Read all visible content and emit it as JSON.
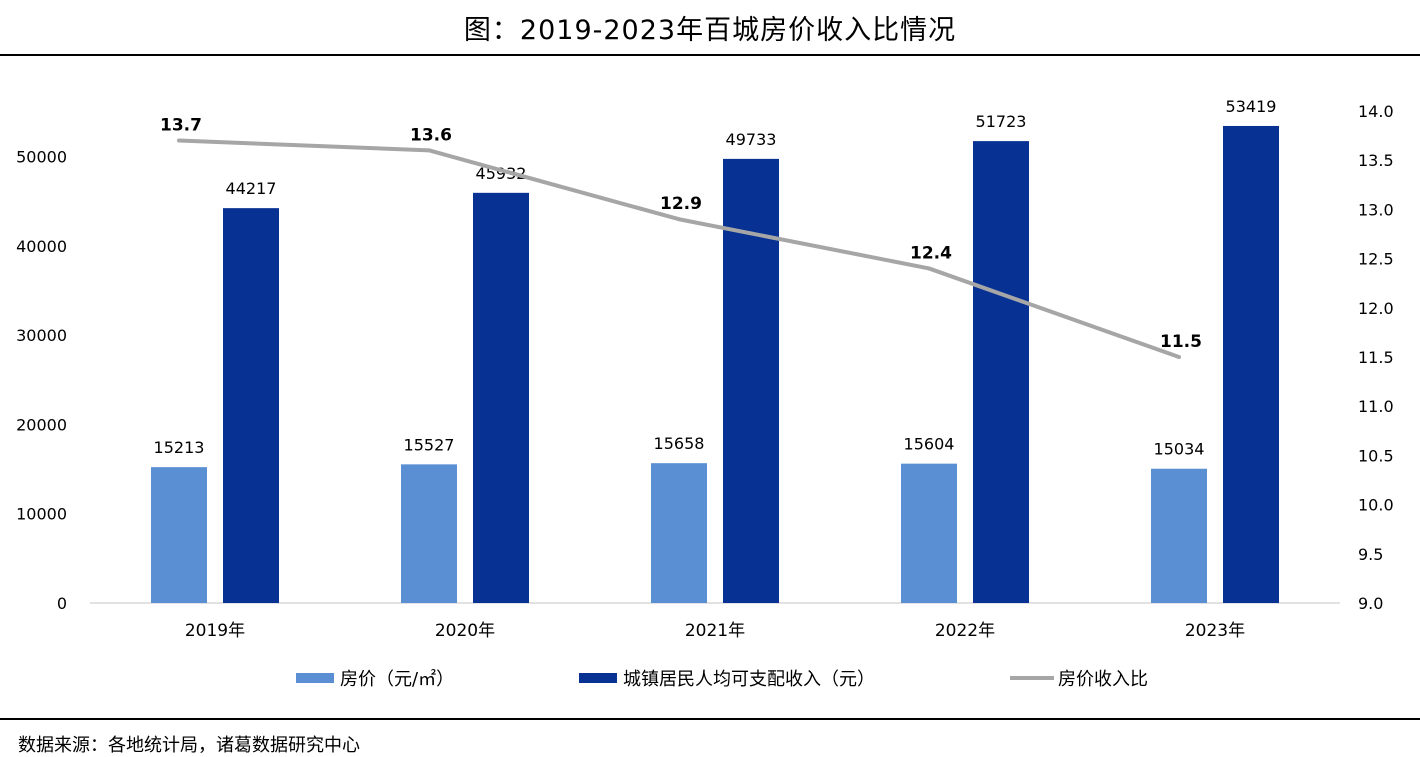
{
  "page": {
    "title": "图：2019-2023年百城房价收入比情况",
    "source": "数据来源：各地统计局，诸葛数据研究中心"
  },
  "chart_data": {
    "type": "bar",
    "title": "图：2019-2023年百城房价收入比情况",
    "categories": [
      "2019年",
      "2020年",
      "2021年",
      "2022年",
      "2023年"
    ],
    "series": [
      {
        "name": "房价（元/㎡）",
        "type": "bar",
        "axis": "left",
        "color": "#5b8fd4",
        "values": [
          15213,
          15527,
          15658,
          15604,
          15034
        ],
        "labels": [
          "15213",
          "15527",
          "15658",
          "15604",
          "15034"
        ]
      },
      {
        "name": "城镇居民人均可支配收入（元）",
        "type": "bar",
        "axis": "left",
        "color": "#073192",
        "values": [
          44217,
          45932,
          49733,
          51723,
          53419
        ],
        "labels": [
          "44217",
          "45932",
          "49733",
          "51723",
          "53419"
        ]
      },
      {
        "name": "房价收入比",
        "type": "line",
        "axis": "right",
        "color": "#a6a6a6",
        "values": [
          13.7,
          13.6,
          12.9,
          12.4,
          11.5
        ],
        "labels": [
          "13.7",
          "13.6",
          "12.9",
          "12.4",
          "11.5"
        ]
      }
    ],
    "y_left": {
      "ylim": [
        0,
        60000
      ],
      "ticks": [
        0,
        10000,
        20000,
        30000,
        40000,
        50000
      ],
      "tick_labels": [
        "0",
        "10000",
        "20000",
        "30000",
        "40000",
        "50000"
      ]
    },
    "y_right": {
      "ylim": [
        9.0,
        14.0
      ],
      "ticks": [
        9.0,
        9.5,
        10.0,
        10.5,
        11.0,
        11.5,
        12.0,
        12.5,
        13.0,
        13.5,
        14.0
      ],
      "tick_labels": [
        "9.0",
        "9.5",
        "10.0",
        "10.5",
        "11.0",
        "11.5",
        "12.0",
        "12.5",
        "13.0",
        "13.5",
        "14.0"
      ]
    },
    "grid": false,
    "legend": "bottom",
    "xlabel": "",
    "ylabel": ""
  }
}
